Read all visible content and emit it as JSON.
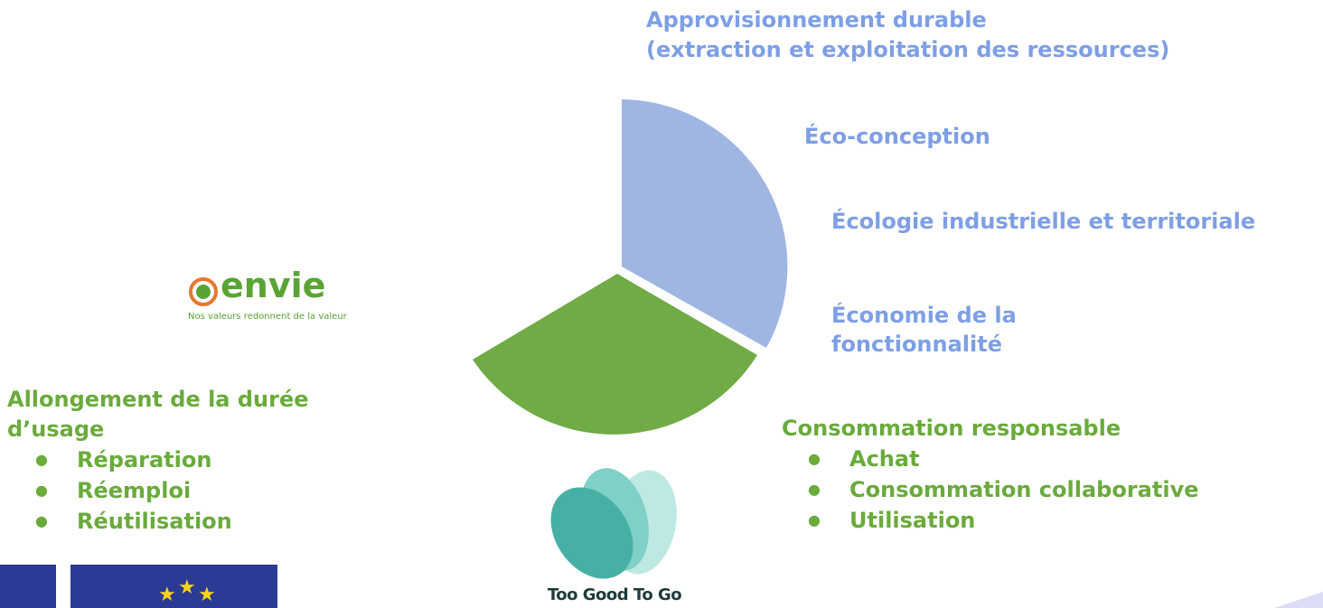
{
  "blue_sections": [
    {
      "lines": [
        "Approvisionnement durable",
        "(extraction et exploitation des ressources)"
      ]
    },
    {
      "lines": [
        "Éco-conception"
      ]
    },
    {
      "lines": [
        "Écologie industrielle et territoriale"
      ]
    },
    {
      "lines": [
        "Économie de la",
        "fonctionnalité"
      ]
    }
  ],
  "green_sections": [
    {
      "lines": [
        "Consommation responsable"
      ],
      "items": [
        "Achat",
        "Consommation collaborative",
        "Utilisation"
      ]
    },
    {
      "lines": [
        "Allongement de la durée",
        "d’usage"
      ],
      "items": [
        "Réparation",
        "Réemploi",
        "Réutilisation"
      ]
    }
  ],
  "logos": {
    "envie": {
      "name": "envie",
      "tagline": "Nos valeurs redonnent de la valeur"
    },
    "tgtg": "Too Good To Go"
  }
}
